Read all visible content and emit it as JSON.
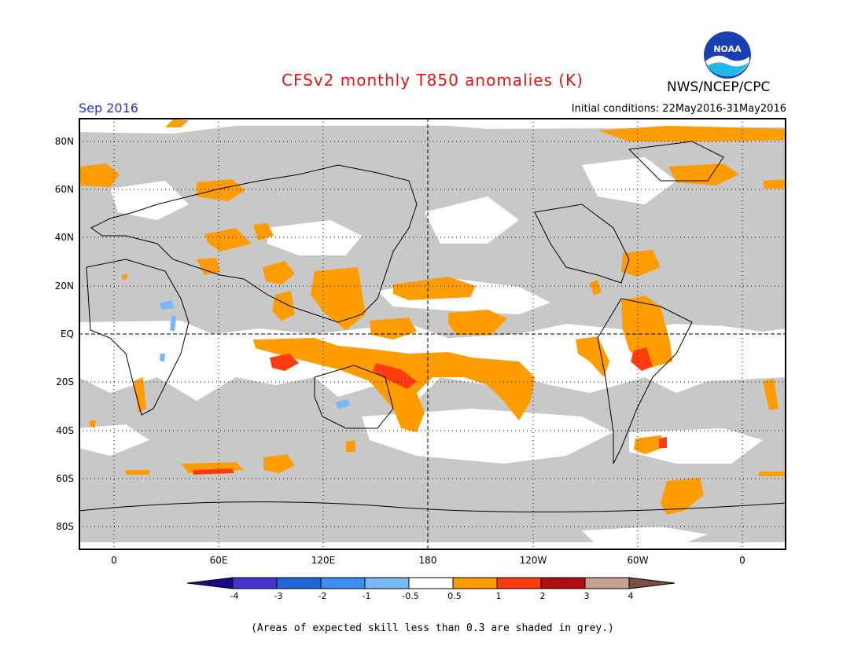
{
  "header": {
    "title": "CFSv2 monthly T850 anomalies (K)",
    "valid_month": "Sep 2016",
    "initial_conditions": "Initial conditions: 22May2016-31May2016",
    "agency": "NWS/NCEP/CPC",
    "logo_text": "NOAA"
  },
  "map": {
    "lat_labels": [
      "80N",
      "60N",
      "40N",
      "20N",
      "EQ",
      "20S",
      "40S",
      "60S",
      "80S"
    ],
    "lon_labels": [
      "0",
      "60E",
      "120E",
      "180",
      "120W",
      "60W",
      "0"
    ],
    "grid": "dotted",
    "skill_mask_color": "#c8c8c8"
  },
  "legend": {
    "ticks": [
      "-4",
      "-3",
      "-2",
      "-1",
      "-0.5",
      "0.5",
      "1",
      "2",
      "3",
      "4"
    ],
    "colors": [
      "#1a0a8a",
      "#4433cc",
      "#1f66d9",
      "#3d8ef0",
      "#78b9f5",
      "#ffffff",
      "#ff9c00",
      "#ff3d10",
      "#b00f0f",
      "#c8a090",
      "#7a5040"
    ]
  },
  "footnote": "(Areas of expected skill less than 0.3 are shaded in grey.)"
}
